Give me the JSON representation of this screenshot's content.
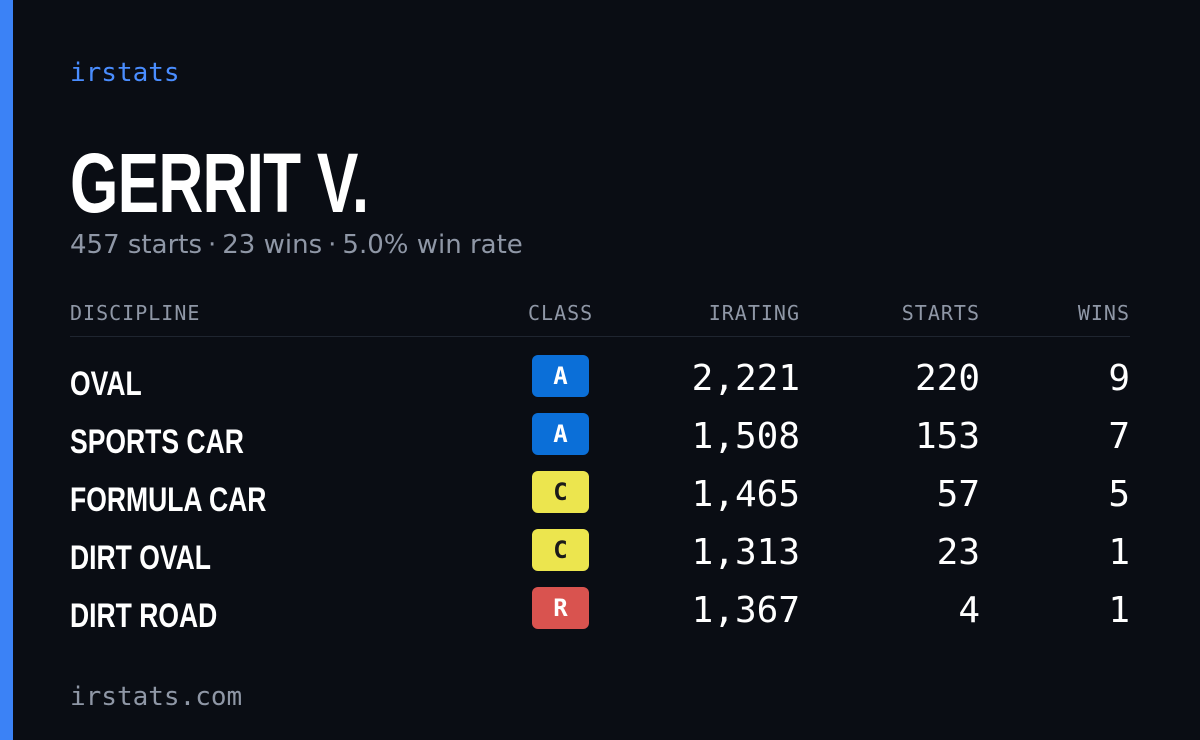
{
  "brand": "irstats",
  "driver": {
    "name": "GERRIT V.",
    "starts_text": "457 starts",
    "wins_text": "23 wins",
    "win_rate_text": "5.0% win rate",
    "separator": "·"
  },
  "table": {
    "headers": {
      "discipline": "DISCIPLINE",
      "class": "CLASS",
      "irating": "IRATING",
      "starts": "STARTS",
      "wins": "WINS"
    },
    "rows": [
      {
        "discipline": "OVAL",
        "class": "A",
        "irating": "2,221",
        "starts": "220",
        "wins": "9"
      },
      {
        "discipline": "SPORTS CAR",
        "class": "A",
        "irating": "1,508",
        "starts": "153",
        "wins": "7"
      },
      {
        "discipline": "FORMULA CAR",
        "class": "C",
        "irating": "1,465",
        "starts": "57",
        "wins": "5"
      },
      {
        "discipline": "DIRT OVAL",
        "class": "C",
        "irating": "1,313",
        "starts": "23",
        "wins": "1"
      },
      {
        "discipline": "DIRT ROAD",
        "class": "R",
        "irating": "1,367",
        "starts": "4",
        "wins": "1"
      }
    ]
  },
  "class_colors": {
    "A": {
      "bg": "#0b6fd8",
      "fg": "#ffffff"
    },
    "C": {
      "bg": "#ece54e",
      "fg": "#1a1a1a"
    },
    "R": {
      "bg": "#d9534f",
      "fg": "#ffffff"
    }
  },
  "colors": {
    "background": "#0a0d14",
    "accent": "#3b82f6",
    "brand": "#4a8dff",
    "muted": "#8f97a6"
  },
  "footer": {
    "url": "irstats.com"
  }
}
